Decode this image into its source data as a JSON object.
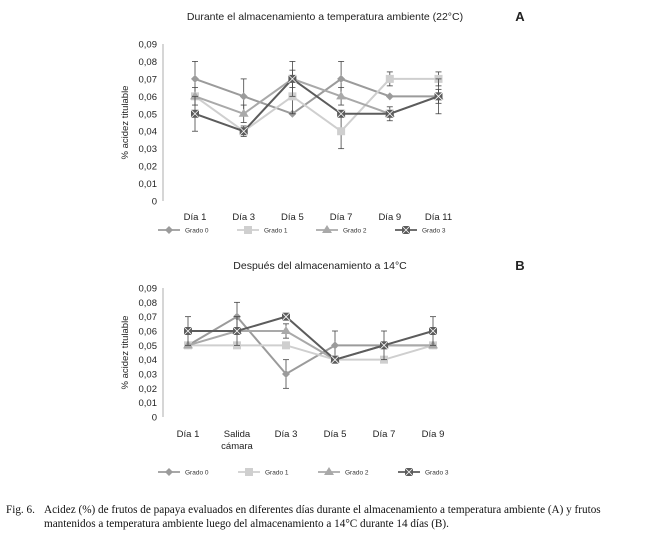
{
  "chart_data": [
    {
      "type": "line",
      "letter": "A",
      "title": "Durante el almacenamiento a temperatura ambiente (22°C)",
      "ylabel": "% acidez titulable",
      "xlabel": "",
      "categories": [
        "Día 1",
        "Día 3",
        "Día 5",
        "Día 7",
        "Día 9",
        "Día 11"
      ],
      "ylim": [
        0,
        0.09
      ],
      "yticks": [
        "0",
        "0,01",
        "0,02",
        "0,03",
        "0,04",
        "0,05",
        "0,06",
        "0,07",
        "0,08",
        "0,09"
      ],
      "legend_position": "bottom",
      "series": [
        {
          "name": "Grado 0",
          "marker": "diamond",
          "color": "#9b9b9b",
          "values": [
            0.07,
            0.06,
            0.05,
            0.07,
            0.06,
            0.06
          ],
          "err": [
            0.01,
            0.01,
            0,
            0.01,
            0,
            0
          ]
        },
        {
          "name": "Grado 1",
          "marker": "square",
          "color": "#cfcfcf",
          "values": [
            0.06,
            0.04,
            0.06,
            0.04,
            0.07,
            0.07
          ],
          "err": [
            0,
            0,
            0.01,
            0.01,
            0.004,
            0.004
          ]
        },
        {
          "name": "Grado 2",
          "marker": "triangle",
          "color": "#a9a9a9",
          "values": [
            0.06,
            0.05,
            0.07,
            0.06,
            0.05,
            0.06
          ],
          "err": [
            0.005,
            0.005,
            0.005,
            0.005,
            0.004,
            0.004
          ]
        },
        {
          "name": "Grado 3",
          "marker": "x-square",
          "color": "#5c5c5c",
          "values": [
            0.05,
            0.04,
            0.07,
            0.05,
            0.05,
            0.06
          ],
          "err": [
            0.01,
            0.003,
            0.01,
            0,
            0,
            0.01
          ]
        }
      ]
    },
    {
      "type": "line",
      "letter": "B",
      "title": "Después del almacenamiento a 14°C",
      "ylabel": "% acidez titulable",
      "xlabel": "",
      "categories": [
        [
          "Día 1"
        ],
        [
          "Salida",
          "cámara"
        ],
        [
          "Día 3"
        ],
        [
          "Día 5"
        ],
        [
          "Día 7"
        ],
        [
          "Día 9"
        ]
      ],
      "ylim": [
        0,
        0.09
      ],
      "yticks": [
        "0",
        "0,01",
        "0,02",
        "0,03",
        "0,04",
        "0,05",
        "0,06",
        "0,07",
        "0,08",
        "0,09"
      ],
      "legend_position": "bottom",
      "series": [
        {
          "name": "Grado 0",
          "marker": "diamond",
          "color": "#9b9b9b",
          "values": [
            0.05,
            0.07,
            0.03,
            0.05,
            0.05,
            0.05
          ],
          "err": [
            0,
            0.01,
            0.01,
            0.01,
            0,
            0
          ]
        },
        {
          "name": "Grado 1",
          "marker": "square",
          "color": "#cfcfcf",
          "values": [
            0.05,
            0.05,
            0.05,
            0.04,
            0.04,
            0.05
          ],
          "err": [
            0,
            0,
            0,
            0,
            0,
            0
          ]
        },
        {
          "name": "Grado 2",
          "marker": "triangle",
          "color": "#a9a9a9",
          "values": [
            0.05,
            0.06,
            0.06,
            0.04,
            0.05,
            0.05
          ],
          "err": [
            0,
            0,
            0.005,
            0,
            0,
            0
          ]
        },
        {
          "name": "Grado 3",
          "marker": "x-square",
          "color": "#5c5c5c",
          "values": [
            0.06,
            0.06,
            0.07,
            0.04,
            0.05,
            0.06
          ],
          "err": [
            0.01,
            0.01,
            0,
            0,
            0.01,
            0.01
          ]
        }
      ]
    }
  ],
  "caption": {
    "label": "Fig. 6.",
    "text": "Acidez (%) de frutos de papaya evaluados en diferentes días durante el almacenamiento a temperatura ambiente (A) y frutos mantenidos a temperatura ambiente luego del almacenamiento a 14°C durante 14 días (B)."
  }
}
